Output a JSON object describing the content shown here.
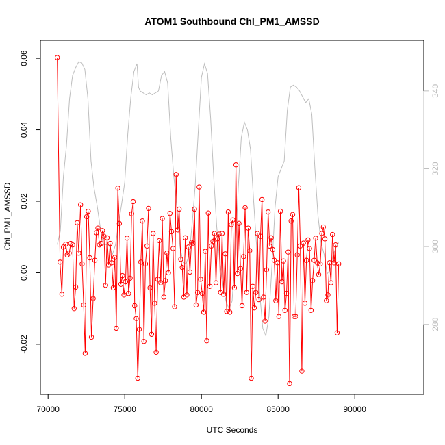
{
  "chart_data": {
    "type": "line",
    "title": "ATOM1 Southbound Chl_PM1_AMSSD",
    "xlabel": "UTC Seconds",
    "ylabel": "Chl_PM1_AMSSD",
    "xlim": [
      69500,
      94500
    ],
    "ylim": [
      -0.034,
      0.065
    ],
    "y2lim": [
      262,
      353
    ],
    "x_ticks": [
      70000,
      75000,
      80000,
      85000,
      90000
    ],
    "x_tick_labels": [
      "70000",
      "75000",
      "80000",
      "85000",
      "90000"
    ],
    "y_ticks": [
      -0.02,
      0.0,
      0.02,
      0.04,
      0.06
    ],
    "y_tick_labels": [
      "-0.02",
      "0.00",
      "0.02",
      "0.04",
      "0.06"
    ],
    "y2_ticks": [
      280,
      300,
      320,
      340
    ],
    "y2_tick_labels": [
      "280",
      "300",
      "320",
      "340"
    ],
    "grid": false,
    "colors": {
      "primary": "#ff0000",
      "secondary": "#bebebe",
      "axes": "#000000"
    },
    "series": [
      {
        "axis": "left",
        "style": "line+points",
        "color": "#ff0000",
        "points": [
          [
            70600,
            0.0602
          ],
          [
            70780,
            0.003
          ],
          [
            70900,
            -0.006
          ],
          [
            71000,
            0.0072
          ],
          [
            71150,
            0.008
          ],
          [
            71250,
            0.005
          ],
          [
            71380,
            0.0055
          ],
          [
            71480,
            0.0082
          ],
          [
            71600,
            0.0078
          ],
          [
            71700,
            -0.01
          ],
          [
            71800,
            -0.004
          ],
          [
            71900,
            0.014
          ],
          [
            72000,
            0.0055
          ],
          [
            72120,
            0.019
          ],
          [
            72220,
            0.0025
          ],
          [
            72320,
            -0.009
          ],
          [
            72420,
            -0.0225
          ],
          [
            72520,
            0.0157
          ],
          [
            72620,
            0.0172
          ],
          [
            72720,
            0.0042
          ],
          [
            72830,
            -0.018
          ],
          [
            72940,
            -0.0072
          ],
          [
            73050,
            0.0035
          ],
          [
            73150,
            0.0112
          ],
          [
            73250,
            0.0125
          ],
          [
            73350,
            0.0078
          ],
          [
            73450,
            0.0082
          ],
          [
            73550,
            0.0118
          ],
          [
            73650,
            0.0102
          ],
          [
            73750,
            -0.0035
          ],
          [
            73850,
            0.0098
          ],
          [
            73950,
            0.0022
          ],
          [
            74050,
            0.0082
          ],
          [
            74150,
            0.0028
          ],
          [
            74250,
            -0.0042
          ],
          [
            74350,
            0.0043
          ],
          [
            74450,
            -0.0155
          ],
          [
            74550,
            0.0237
          ],
          [
            74650,
            0.0138
          ],
          [
            74750,
            -0.0032
          ],
          [
            74850,
            -0.0008
          ],
          [
            74950,
            -0.0062
          ],
          [
            75050,
            -0.0025
          ],
          [
            75150,
            0.0097
          ],
          [
            75250,
            -0.0058
          ],
          [
            75350,
            -0.0015
          ],
          [
            75450,
            0.0165
          ],
          [
            75550,
            0.0199
          ],
          [
            75650,
            -0.0092
          ],
          [
            75750,
            -0.0128
          ],
          [
            75850,
            -0.0295
          ],
          [
            75950,
            -0.0158
          ],
          [
            76050,
            0.003
          ],
          [
            76150,
            0.0145
          ],
          [
            76250,
            -0.0192
          ],
          [
            76350,
            0.0025
          ],
          [
            76450,
            0.0075
          ],
          [
            76550,
            0.018
          ],
          [
            76650,
            -0.0042
          ],
          [
            76750,
            -0.0172
          ],
          [
            76850,
            0.011
          ],
          [
            76950,
            -0.0085
          ],
          [
            77050,
            -0.0222
          ],
          [
            77150,
            -0.0018
          ],
          [
            77250,
            0.009
          ],
          [
            77350,
            -0.0028
          ],
          [
            77450,
            0.0152
          ],
          [
            77550,
            -0.0068
          ],
          [
            77650,
            -0.0022
          ],
          [
            77750,
            0.0055
          ],
          [
            77850,
            0.0
          ],
          [
            77950,
            0.0166
          ],
          [
            78050,
            0.0115
          ],
          [
            78150,
            0.0068
          ],
          [
            78250,
            -0.0095
          ],
          [
            78350,
            0.0275
          ],
          [
            78450,
            0.012
          ],
          [
            78550,
            0.0178
          ],
          [
            78650,
            0.0038
          ],
          [
            78750,
            0.0015
          ],
          [
            78850,
            -0.0068
          ],
          [
            78950,
            0.0098
          ],
          [
            79050,
            -0.0062
          ],
          [
            79150,
            0.0072
          ],
          [
            79250,
            0.0002
          ],
          [
            79350,
            0.0085
          ],
          [
            79450,
            0.0083
          ],
          [
            79550,
            0.0178
          ],
          [
            79650,
            -0.009
          ],
          [
            79750,
            -0.0055
          ],
          [
            79850,
            0.024
          ],
          [
            79950,
            -0.0018
          ],
          [
            80050,
            -0.0058
          ],
          [
            80150,
            -0.011
          ],
          [
            80250,
            0.006
          ],
          [
            80350,
            -0.019
          ],
          [
            80450,
            0.0167
          ],
          [
            80550,
            -0.0038
          ],
          [
            80650,
            0.0075
          ],
          [
            80750,
            0.0088
          ],
          [
            80850,
            0.011
          ],
          [
            80950,
            -0.0028
          ],
          [
            81050,
            0.0095
          ],
          [
            81150,
            0.0108
          ],
          [
            81250,
            -0.0055
          ],
          [
            81350,
            0.011
          ],
          [
            81450,
            -0.006
          ],
          [
            81550,
            0.0053
          ],
          [
            81650,
            -0.0108
          ],
          [
            81750,
            0.017
          ],
          [
            81850,
            -0.011
          ],
          [
            81950,
            0.0135
          ],
          [
            82050,
            0.0148
          ],
          [
            82150,
            -0.0042
          ],
          [
            82250,
            0.0302
          ],
          [
            82350,
            -0.0002
          ],
          [
            82450,
            0.0138
          ],
          [
            82550,
            0.0012
          ],
          [
            82650,
            -0.0092
          ],
          [
            82750,
            0.0045
          ],
          [
            82850,
            0.0182
          ],
          [
            82950,
            -0.0055
          ],
          [
            83050,
            0.0125
          ],
          [
            83150,
            0.0062
          ],
          [
            83250,
            -0.0295
          ],
          [
            83350,
            -0.0038
          ],
          [
            83450,
            -0.0098
          ],
          [
            83550,
            -0.0055
          ],
          [
            83650,
            0.011
          ],
          [
            83750,
            -0.0075
          ],
          [
            83850,
            0.0102
          ],
          [
            83950,
            0.0205
          ],
          [
            84050,
            -0.0068
          ],
          [
            84150,
            -0.0135
          ],
          [
            84250,
            0.0008
          ],
          [
            84350,
            0.017
          ],
          [
            84450,
            0.0075
          ],
          [
            84550,
            0.0098
          ],
          [
            84650,
            0.0065
          ],
          [
            84750,
            0.0035
          ],
          [
            84850,
            -0.0078
          ],
          [
            84950,
            0.0028
          ],
          [
            85050,
            -0.0122
          ],
          [
            85150,
            0.0172
          ],
          [
            85250,
            -0.0025
          ],
          [
            85350,
            0.0033
          ],
          [
            85450,
            -0.0105
          ],
          [
            85550,
            -0.0058
          ],
          [
            85650,
            0.0058
          ],
          [
            85750,
            -0.031
          ],
          [
            85850,
            0.0145
          ],
          [
            85950,
            0.0163
          ],
          [
            86050,
            -0.0122
          ],
          [
            86150,
            -0.0122
          ],
          [
            86250,
            0.005
          ],
          [
            86350,
            0.0238
          ],
          [
            86450,
            0.0075
          ],
          [
            86550,
            -0.0275
          ],
          [
            86650,
            0.0083
          ],
          [
            86750,
            -0.0085
          ],
          [
            86850,
            0.0035
          ],
          [
            86950,
            0.0092
          ],
          [
            87050,
            0.0068
          ],
          [
            87150,
            -0.0105
          ],
          [
            87250,
            -0.0022
          ],
          [
            87350,
            0.0035
          ],
          [
            87450,
            0.0097
          ],
          [
            87550,
            0.0028
          ],
          [
            87650,
            -0.0005
          ],
          [
            87750,
            0.0025
          ],
          [
            87850,
            0.011
          ],
          [
            87950,
            0.0128
          ],
          [
            88050,
            0.0095
          ],
          [
            88150,
            -0.0078
          ],
          [
            88250,
            -0.0062
          ],
          [
            88350,
            0.0028
          ],
          [
            88450,
            -0.0028
          ],
          [
            88550,
            0.0107
          ],
          [
            88650,
            0.0028
          ],
          [
            88750,
            0.0078
          ],
          [
            88850,
            -0.0168
          ],
          [
            88950,
            0.0025
          ]
        ]
      },
      {
        "axis": "right",
        "style": "line",
        "color": "#bebebe",
        "points": [
          [
            70600,
            300.5
          ],
          [
            70800,
            304.0
          ],
          [
            71000,
            318.0
          ],
          [
            71200,
            326.0
          ],
          [
            71400,
            338.0
          ],
          [
            71600,
            344.0
          ],
          [
            71800,
            346.0
          ],
          [
            72000,
            347.5
          ],
          [
            72200,
            347.2
          ],
          [
            72400,
            345.5
          ],
          [
            72600,
            338.0
          ],
          [
            72800,
            322.0
          ],
          [
            73000,
            315.0
          ],
          [
            73200,
            310.5
          ],
          [
            73400,
            305.0
          ],
          [
            73600,
            300.5
          ],
          [
            73800,
            300.5
          ],
          [
            74000,
            300.0
          ],
          [
            74200,
            298.0
          ],
          [
            74400,
            300.5
          ],
          [
            74600,
            306.0
          ],
          [
            74800,
            311.0
          ],
          [
            75000,
            316.5
          ],
          [
            75200,
            329.0
          ],
          [
            75400,
            338.5
          ],
          [
            75600,
            345.0
          ],
          [
            75800,
            347.0
          ],
          [
            75900,
            341.0
          ],
          [
            76000,
            340.0
          ],
          [
            76200,
            339.5
          ],
          [
            76400,
            339.0
          ],
          [
            76600,
            339.5
          ],
          [
            76800,
            339.0
          ],
          [
            77000,
            339.5
          ],
          [
            77200,
            340.0
          ],
          [
            77400,
            344.0
          ],
          [
            77600,
            345.0
          ],
          [
            77800,
            342.0
          ],
          [
            78000,
            328.0
          ],
          [
            78200,
            318.0
          ],
          [
            78400,
            310.0
          ],
          [
            78600,
            300.0
          ],
          [
            78800,
            296.0
          ],
          [
            79000,
            295.5
          ],
          [
            79200,
            298.0
          ],
          [
            79400,
            306.0
          ],
          [
            79600,
            316.0
          ],
          [
            79800,
            330.0
          ],
          [
            80000,
            343.5
          ],
          [
            80200,
            347.0
          ],
          [
            80400,
            344.5
          ],
          [
            80600,
            333.0
          ],
          [
            80800,
            318.0
          ],
          [
            81000,
            305.0
          ],
          [
            81200,
            296.0
          ],
          [
            81400,
            290.0
          ],
          [
            81600,
            286.0
          ],
          [
            81800,
            284.0
          ],
          [
            82000,
            286.0
          ],
          [
            82200,
            298.0
          ],
          [
            82400,
            315.0
          ],
          [
            82600,
            328.0
          ],
          [
            82800,
            332.0
          ],
          [
            83000,
            330.0
          ],
          [
            83200,
            325.0
          ],
          [
            83400,
            312.0
          ],
          [
            83600,
            300.0
          ],
          [
            83800,
            288.0
          ],
          [
            84000,
            279.0
          ],
          [
            84200,
            277.0
          ],
          [
            84400,
            282.0
          ],
          [
            84600,
            295.0
          ],
          [
            84800,
            310.0
          ],
          [
            85000,
            318.0
          ],
          [
            85200,
            320.0
          ],
          [
            85400,
            322.0
          ],
          [
            85600,
            335.0
          ],
          [
            85800,
            341.0
          ],
          [
            86000,
            341.5
          ],
          [
            86200,
            341.0
          ],
          [
            86400,
            340.0
          ],
          [
            86600,
            338.5
          ],
          [
            86800,
            337.0
          ],
          [
            87000,
            338.0
          ],
          [
            87200,
            334.0
          ],
          [
            87400,
            320.0
          ],
          [
            87600,
            308.0
          ],
          [
            87800,
            301.0
          ],
          [
            88000,
            298.0
          ],
          [
            88200,
            293.0
          ],
          [
            88400,
            294.0
          ],
          [
            88600,
            298.0
          ],
          [
            88800,
            300.0
          ],
          [
            88950,
            301.0
          ]
        ]
      }
    ]
  }
}
